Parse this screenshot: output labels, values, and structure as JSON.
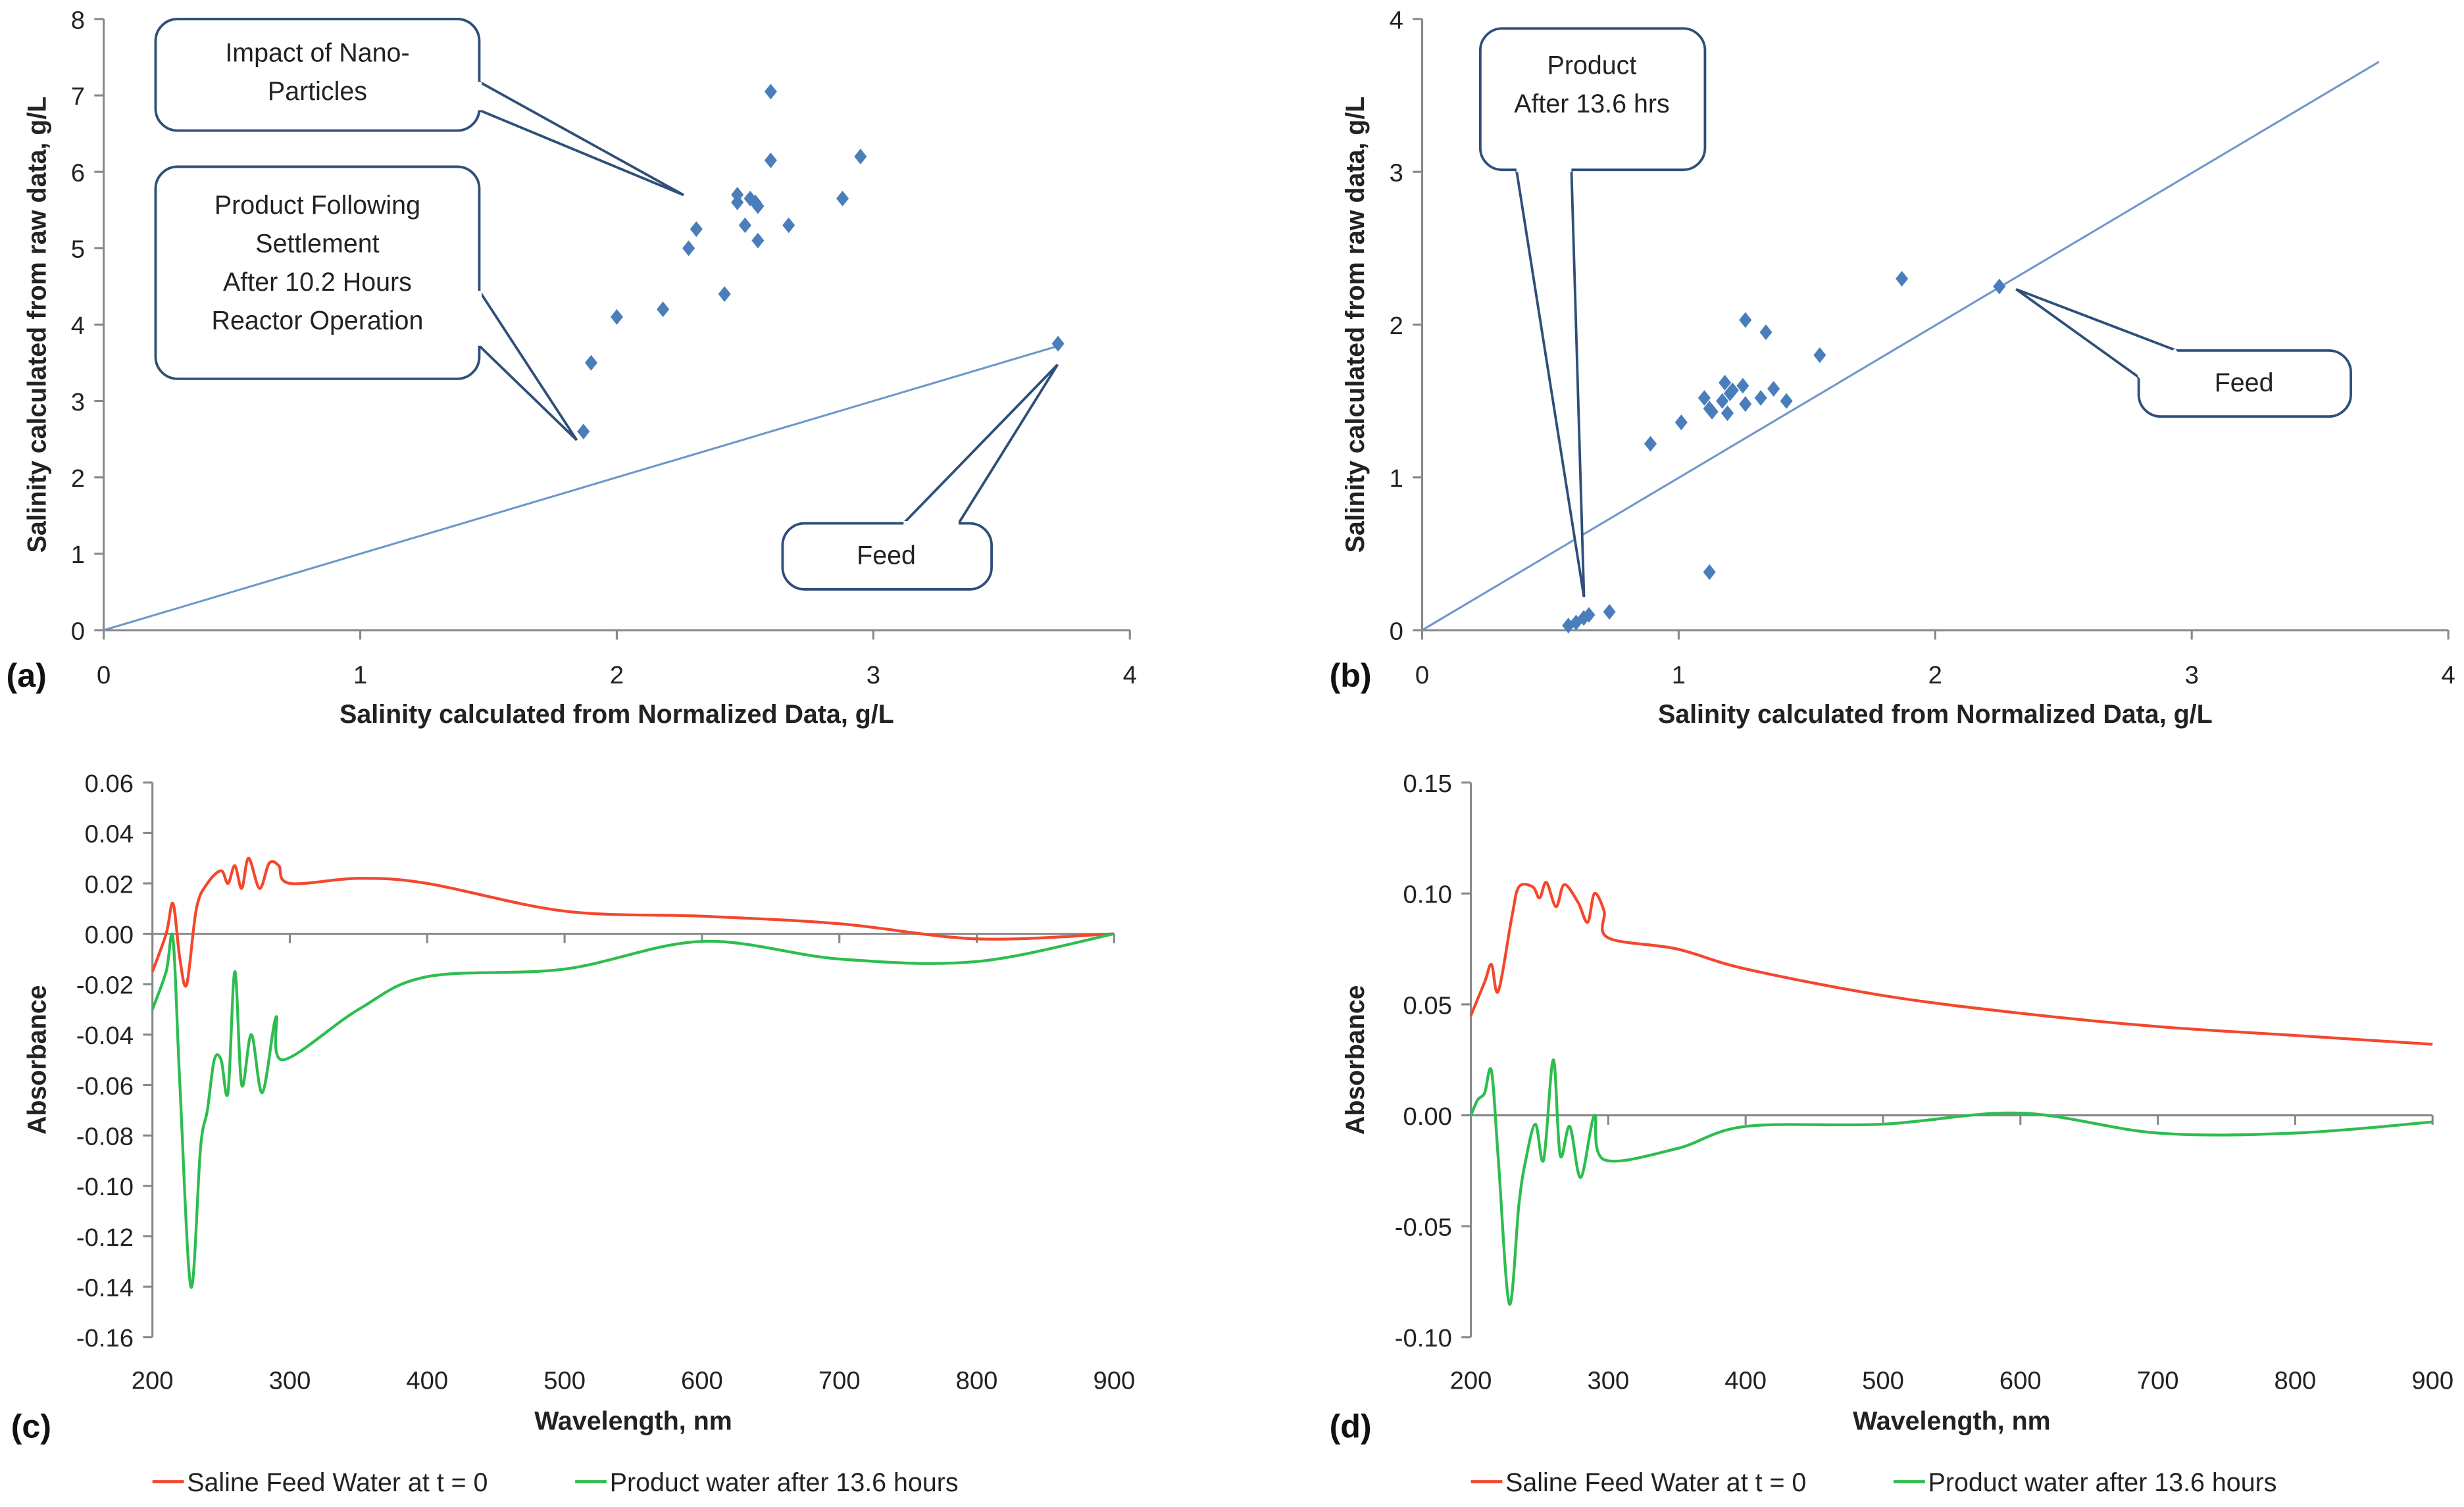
{
  "chart_data": [
    {
      "id": "a",
      "panel_label": "(a)",
      "type": "scatter",
      "xlabel": "Salinity  calculated from Normalized Data, g/L",
      "ylabel": "Salinity calculated from raw data,  g/L",
      "xlim": [
        0,
        4
      ],
      "ylim": [
        0,
        8
      ],
      "xticks": [
        0,
        1,
        2,
        3,
        4
      ],
      "yticks": [
        0,
        1,
        2,
        3,
        4,
        5,
        6,
        7,
        8
      ],
      "color": "#4a7ebb",
      "points": [
        [
          1.87,
          2.6
        ],
        [
          1.9,
          3.5
        ],
        [
          2.0,
          4.1
        ],
        [
          2.18,
          4.2
        ],
        [
          2.28,
          5.0
        ],
        [
          2.31,
          5.25
        ],
        [
          2.42,
          4.4
        ],
        [
          2.47,
          5.6
        ],
        [
          2.47,
          5.7
        ],
        [
          2.5,
          5.3
        ],
        [
          2.52,
          5.65
        ],
        [
          2.54,
          5.6
        ],
        [
          2.55,
          5.55
        ],
        [
          2.55,
          5.1
        ],
        [
          2.6,
          7.05
        ],
        [
          2.6,
          6.15
        ],
        [
          2.67,
          5.3
        ],
        [
          2.88,
          5.65
        ],
        [
          2.95,
          6.2
        ],
        [
          3.72,
          3.75
        ]
      ],
      "line": [
        [
          0,
          0
        ],
        [
          3.72,
          3.72
        ]
      ],
      "callouts": [
        {
          "lines": [
            "Impact of Nano-",
            "Particles"
          ]
        },
        {
          "lines": [
            "Product  Following",
            "Settlement",
            "After 10.2 Hours",
            "Reactor Operation"
          ]
        },
        {
          "lines": [
            "Feed"
          ]
        }
      ]
    },
    {
      "id": "b",
      "panel_label": "(b)",
      "type": "scatter",
      "xlabel": "Salinity  calculated from Normalized Data, g/L",
      "ylabel": "Salinity calculated from raw data,  g/L",
      "xlim": [
        0,
        4
      ],
      "ylim": [
        0,
        4
      ],
      "xticks": [
        0,
        1,
        2,
        3,
        4
      ],
      "yticks": [
        0,
        1,
        2,
        3,
        4
      ],
      "color": "#4a7ebb",
      "points": [
        [
          0.57,
          0.03
        ],
        [
          0.6,
          0.05
        ],
        [
          0.63,
          0.08
        ],
        [
          0.65,
          0.1
        ],
        [
          0.73,
          0.12
        ],
        [
          0.89,
          1.22
        ],
        [
          1.01,
          1.36
        ],
        [
          1.1,
          1.52
        ],
        [
          1.12,
          1.45
        ],
        [
          1.13,
          1.43
        ],
        [
          1.17,
          1.5
        ],
        [
          1.18,
          1.62
        ],
        [
          1.19,
          1.42
        ],
        [
          1.2,
          1.55
        ],
        [
          1.21,
          1.57
        ],
        [
          1.25,
          1.6
        ],
        [
          1.26,
          1.48
        ],
        [
          1.26,
          2.03
        ],
        [
          1.32,
          1.52
        ],
        [
          1.34,
          1.95
        ],
        [
          1.37,
          1.58
        ],
        [
          1.42,
          1.5
        ],
        [
          1.55,
          1.8
        ],
        [
          1.87,
          2.3
        ],
        [
          2.25,
          2.25
        ],
        [
          1.12,
          0.38
        ]
      ],
      "line": [
        [
          0,
          0
        ],
        [
          3.73,
          3.72
        ]
      ],
      "callouts": [
        {
          "lines": [
            "Product",
            "After 13.6 hrs"
          ]
        },
        {
          "lines": [
            "Feed"
          ]
        }
      ]
    },
    {
      "id": "c",
      "panel_label": "(c)",
      "type": "line",
      "xlabel": "Wavelength, nm",
      "ylabel": "Absorbance",
      "xlim": [
        200,
        900
      ],
      "ylim": [
        -0.16,
        0.06
      ],
      "xticks": [
        200,
        300,
        400,
        500,
        600,
        700,
        800,
        900
      ],
      "yticks": [
        0.06,
        0.04,
        0.02,
        0.0,
        -0.02,
        -0.04,
        -0.06,
        -0.08,
        -0.1,
        -0.12,
        -0.14,
        -0.16
      ],
      "ytick_labels": [
        "0.06",
        "0.04",
        "0.02",
        "0.00",
        "-0.02",
        "-0.04",
        "-0.06",
        "-0.08",
        "-0.10",
        "-0.12",
        "-0.14",
        "-0.16"
      ],
      "series": [
        {
          "name": "Saline Feed Water at t = 0",
          "color": "#f4472d",
          "points": [
            [
              200,
              -0.015
            ],
            [
              210,
              0
            ],
            [
              215,
              0.012
            ],
            [
              220,
              -0.01
            ],
            [
              225,
              -0.02
            ],
            [
              232,
              0.01
            ],
            [
              240,
              0.02
            ],
            [
              250,
              0.025
            ],
            [
              255,
              0.02
            ],
            [
              260,
              0.027
            ],
            [
              265,
              0.018
            ],
            [
              270,
              0.03
            ],
            [
              278,
              0.018
            ],
            [
              285,
              0.028
            ],
            [
              292,
              0.027
            ],
            [
              300,
              0.02
            ],
            [
              350,
              0.022
            ],
            [
              400,
              0.02
            ],
            [
              500,
              0.009
            ],
            [
              600,
              0.007
            ],
            [
              700,
              0.004
            ],
            [
              800,
              -0.002
            ],
            [
              900,
              0
            ]
          ]
        },
        {
          "name": "Product water after 13.6 hours",
          "color": "#2ebd4f",
          "points": [
            [
              200,
              -0.03
            ],
            [
              210,
              -0.015
            ],
            [
              215,
              -0.002
            ],
            [
              220,
              -0.06
            ],
            [
              228,
              -0.14
            ],
            [
              235,
              -0.085
            ],
            [
              240,
              -0.07
            ],
            [
              245,
              -0.05
            ],
            [
              250,
              -0.05
            ],
            [
              255,
              -0.063
            ],
            [
              260,
              -0.015
            ],
            [
              265,
              -0.06
            ],
            [
              272,
              -0.04
            ],
            [
              280,
              -0.063
            ],
            [
              290,
              -0.033
            ],
            [
              295,
              -0.05
            ],
            [
              350,
              -0.03
            ],
            [
              400,
              -0.017
            ],
            [
              500,
              -0.014
            ],
            [
              600,
              -0.003
            ],
            [
              700,
              -0.01
            ],
            [
              800,
              -0.011
            ],
            [
              900,
              0
            ]
          ]
        }
      ]
    },
    {
      "id": "d",
      "panel_label": "(d)",
      "type": "line",
      "xlabel": "Wavelength, nm",
      "ylabel": "Absorbance",
      "xlim": [
        200,
        900
      ],
      "ylim": [
        -0.1,
        0.15
      ],
      "xticks": [
        200,
        300,
        400,
        500,
        600,
        700,
        800,
        900
      ],
      "yticks": [
        0.15,
        0.1,
        0.05,
        0.0,
        -0.05,
        -0.1
      ],
      "ytick_labels": [
        "0.15",
        "0.10",
        "0.05",
        "0.00",
        "-0.05",
        "-0.10"
      ],
      "series": [
        {
          "name": "Saline Feed Water at t = 0",
          "color": "#f4472d",
          "points": [
            [
              200,
              0.045
            ],
            [
              210,
              0.06
            ],
            [
              215,
              0.068
            ],
            [
              220,
              0.056
            ],
            [
              230,
              0.09
            ],
            [
              235,
              0.103
            ],
            [
              245,
              0.103
            ],
            [
              250,
              0.098
            ],
            [
              255,
              0.105
            ],
            [
              262,
              0.094
            ],
            [
              268,
              0.104
            ],
            [
              278,
              0.096
            ],
            [
              285,
              0.087
            ],
            [
              290,
              0.1
            ],
            [
              297,
              0.092
            ],
            [
              300,
              0.08
            ],
            [
              350,
              0.075
            ],
            [
              400,
              0.066
            ],
            [
              500,
              0.054
            ],
            [
              600,
              0.046
            ],
            [
              700,
              0.04
            ],
            [
              800,
              0.036
            ],
            [
              900,
              0.032
            ]
          ]
        },
        {
          "name": "Product water after 13.6 hours",
          "color": "#2ebd4f",
          "points": [
            [
              200,
              0
            ],
            [
              205,
              0.007
            ],
            [
              210,
              0.01
            ],
            [
              215,
              0.02
            ],
            [
              220,
              -0.02
            ],
            [
              228,
              -0.085
            ],
            [
              235,
              -0.04
            ],
            [
              240,
              -0.02
            ],
            [
              247,
              -0.004
            ],
            [
              253,
              -0.02
            ],
            [
              260,
              0.025
            ],
            [
              265,
              -0.018
            ],
            [
              272,
              -0.005
            ],
            [
              280,
              -0.028
            ],
            [
              290,
              0
            ],
            [
              297,
              -0.02
            ],
            [
              350,
              -0.015
            ],
            [
              400,
              -0.005
            ],
            [
              500,
              -0.004
            ],
            [
              600,
              0.001
            ],
            [
              700,
              -0.008
            ],
            [
              800,
              -0.008
            ],
            [
              900,
              -0.003
            ]
          ]
        }
      ]
    }
  ]
}
